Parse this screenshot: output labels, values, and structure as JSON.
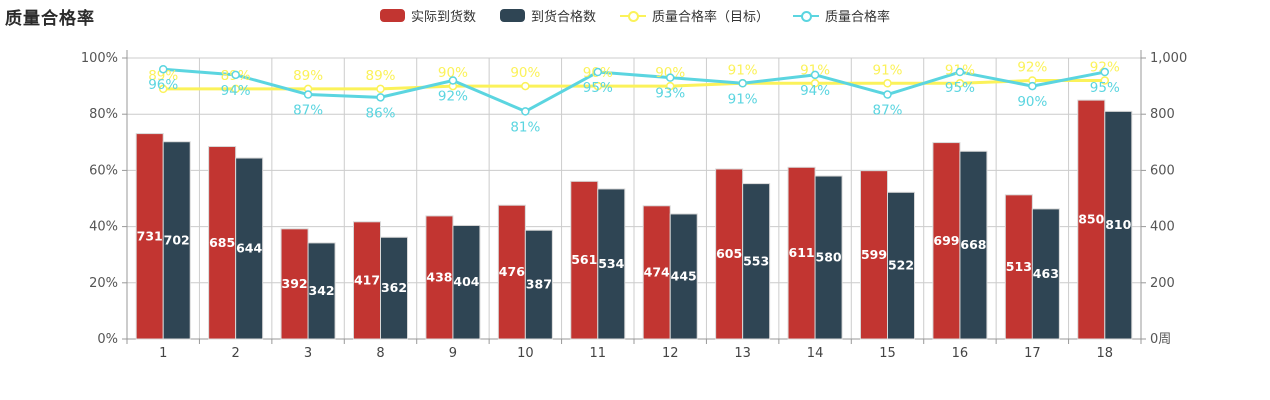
{
  "title": "质量合格率",
  "chart_data": {
    "type": "bar",
    "subtype": "bar+line combo, dual y-axis",
    "title": "质量合格率",
    "categories": [
      "1",
      "2",
      "3",
      "8",
      "9",
      "10",
      "11",
      "12",
      "13",
      "14",
      "15",
      "16",
      "17",
      "18"
    ],
    "series": [
      {
        "name": "实际到货数",
        "type": "bar",
        "axis": "right",
        "color": "#c23531",
        "values": [
          731,
          685,
          392,
          417,
          438,
          476,
          561,
          474,
          605,
          611,
          599,
          699,
          513,
          850
        ]
      },
      {
        "name": "到货合格数",
        "type": "bar",
        "axis": "right",
        "color": "#2f4554",
        "values": [
          702,
          644,
          342,
          362,
          404,
          387,
          534,
          445,
          553,
          580,
          522,
          668,
          463,
          810
        ]
      },
      {
        "name": "质量合格率（目标）",
        "type": "line",
        "axis": "left",
        "color": "#fbf25a",
        "label_position": "top",
        "label_suffix": "%",
        "values": [
          89,
          89,
          89,
          89,
          90,
          90,
          90,
          90,
          91,
          91,
          91,
          91,
          92,
          92
        ]
      },
      {
        "name": "质量合格率",
        "type": "line",
        "axis": "left",
        "color": "#5bd5e0",
        "label_position": "bottom",
        "label_suffix": "%",
        "values": [
          96,
          94,
          87,
          86,
          92,
          81,
          95,
          93,
          91,
          94,
          87,
          95,
          90,
          95
        ]
      }
    ],
    "left_axis": {
      "ticks": [
        "0%",
        "20%",
        "40%",
        "60%",
        "80%",
        "100%"
      ],
      "min": 0,
      "max": 100
    },
    "right_axis": {
      "ticks": [
        "0",
        "200",
        "400",
        "600",
        "800",
        "1,000"
      ],
      "min": 0,
      "max": 1000,
      "name": "周"
    },
    "grid": true,
    "legend_position": "top-center",
    "colors": {
      "grid_line": "#cccccc",
      "axis_line": "#999999",
      "axis_text": "#555555",
      "bar_value_text": "#ffffff",
      "bar_border": "#d8d8d8"
    }
  }
}
